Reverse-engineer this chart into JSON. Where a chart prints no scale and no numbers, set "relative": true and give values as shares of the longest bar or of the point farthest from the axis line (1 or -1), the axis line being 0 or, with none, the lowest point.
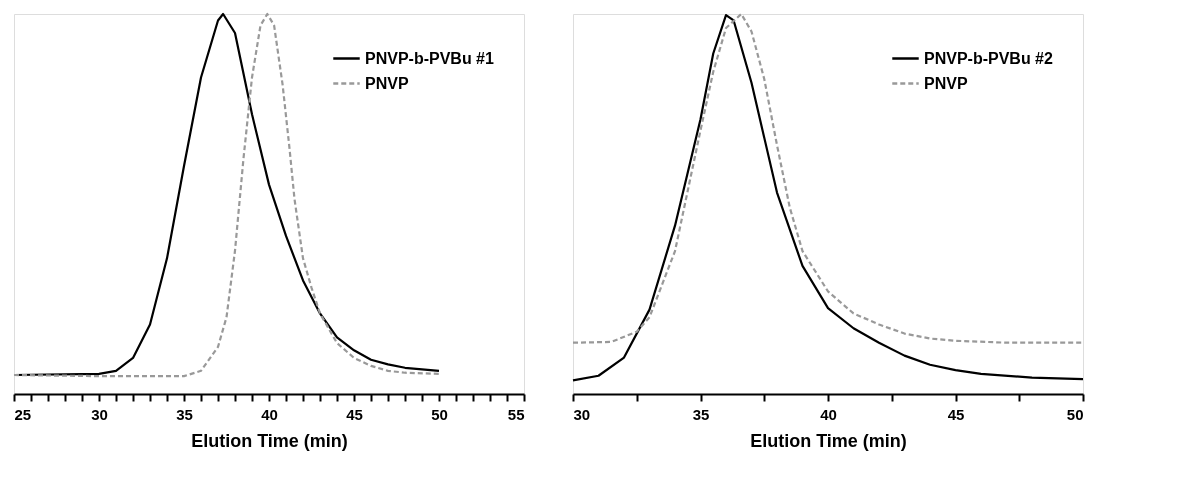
{
  "chart_data": [
    {
      "type": "line",
      "relative": true,
      "xlabel": "Elution Time (min)",
      "xlim": [
        25,
        55
      ],
      "xticks": [
        25,
        {
          "value": 26,
          "label": null
        },
        {
          "value": 27,
          "label": null
        },
        {
          "value": 28,
          "label": null
        },
        {
          "value": 29,
          "label": null
        },
        30,
        {
          "value": 31,
          "label": null
        },
        {
          "value": 32,
          "label": null
        },
        {
          "value": 33,
          "label": null
        },
        {
          "value": 34,
          "label": null
        },
        35,
        {
          "value": 36,
          "label": null
        },
        {
          "value": 37,
          "label": null
        },
        {
          "value": 38,
          "label": null
        },
        {
          "value": 39,
          "label": null
        },
        40,
        {
          "value": 41,
          "label": null
        },
        {
          "value": 42,
          "label": null
        },
        {
          "value": 43,
          "label": null
        },
        {
          "value": 44,
          "label": null
        },
        45,
        {
          "value": 46,
          "label": null
        },
        {
          "value": 47,
          "label": null
        },
        {
          "value": 48,
          "label": null
        },
        {
          "value": 49,
          "label": null
        },
        50,
        {
          "value": 51,
          "label": null
        },
        {
          "value": 52,
          "label": null
        },
        {
          "value": 53,
          "label": null
        },
        {
          "value": 54,
          "label": null
        },
        55
      ],
      "legend": "top right",
      "grid": false,
      "marker": "none",
      "tick_labels": "x",
      "series": [
        {
          "name": "PNVP-b-PVBu #1",
          "color": "#000000",
          "line_style": "solid",
          "x": [
            25,
            30,
            31,
            32,
            33,
            34,
            35,
            36,
            37,
            37.3,
            38,
            39,
            40,
            41,
            42,
            43,
            44,
            45,
            46,
            47,
            48,
            50
          ],
          "values": [
            0.05,
            0.053,
            0.061,
            0.095,
            0.183,
            0.357,
            0.6,
            0.833,
            0.983,
            1.0,
            0.95,
            0.736,
            0.551,
            0.416,
            0.299,
            0.212,
            0.149,
            0.115,
            0.09,
            0.078,
            0.069,
            0.061
          ]
        },
        {
          "name": "PNVP",
          "color": "#999999",
          "line_style": "dashed",
          "x": [
            25,
            30,
            35,
            36,
            37,
            37.5,
            38,
            38.5,
            39,
            39.5,
            39.9,
            40.3,
            40.8,
            41.2,
            41.5,
            42,
            42.5,
            43,
            44,
            45,
            46,
            47,
            48,
            50
          ],
          "values": [
            0.05,
            0.047,
            0.047,
            0.061,
            0.124,
            0.202,
            0.377,
            0.62,
            0.833,
            0.97,
            1.0,
            0.97,
            0.814,
            0.649,
            0.513,
            0.357,
            0.28,
            0.212,
            0.134,
            0.095,
            0.074,
            0.061,
            0.056,
            0.053
          ]
        }
      ]
    },
    {
      "type": "line",
      "relative": true,
      "xlabel": "Elution Time (min)",
      "xlim": [
        30,
        50
      ],
      "xticks": [
        30,
        {
          "value": 32.5,
          "label": null
        },
        35,
        {
          "value": 37.5,
          "label": null
        },
        40,
        {
          "value": 42.5,
          "label": null
        },
        45,
        {
          "value": 47.5,
          "label": null
        },
        50
      ],
      "legend": "top right",
      "grid": false,
      "marker": "none",
      "tick_labels": "x",
      "series": [
        {
          "name": "PNVP-b-PVBu #2",
          "color": "#000000",
          "line_style": "solid",
          "x": [
            30,
            31,
            32,
            33,
            34,
            35,
            35.5,
            36,
            36.3,
            37,
            38,
            39,
            40,
            41,
            42,
            43,
            44,
            45,
            46,
            48,
            50
          ],
          "values": [
            0.036,
            0.048,
            0.096,
            0.222,
            0.443,
            0.723,
            0.896,
            0.997,
            0.983,
            0.819,
            0.53,
            0.337,
            0.226,
            0.173,
            0.135,
            0.101,
            0.077,
            0.063,
            0.053,
            0.043,
            0.039
          ]
        },
        {
          "name": "PNVP",
          "color": "#999999",
          "line_style": "dashed",
          "x": [
            30,
            31.5,
            32.5,
            33,
            34,
            35,
            35.5,
            36,
            36.6,
            37,
            37.5,
            38,
            38.5,
            39,
            40,
            41,
            42,
            43,
            44,
            45,
            47,
            50
          ],
          "values": [
            0.135,
            0.137,
            0.164,
            0.202,
            0.376,
            0.694,
            0.848,
            0.963,
            1.0,
            0.954,
            0.829,
            0.655,
            0.491,
            0.376,
            0.27,
            0.212,
            0.183,
            0.159,
            0.146,
            0.14,
            0.135,
            0.135
          ]
        }
      ]
    }
  ]
}
